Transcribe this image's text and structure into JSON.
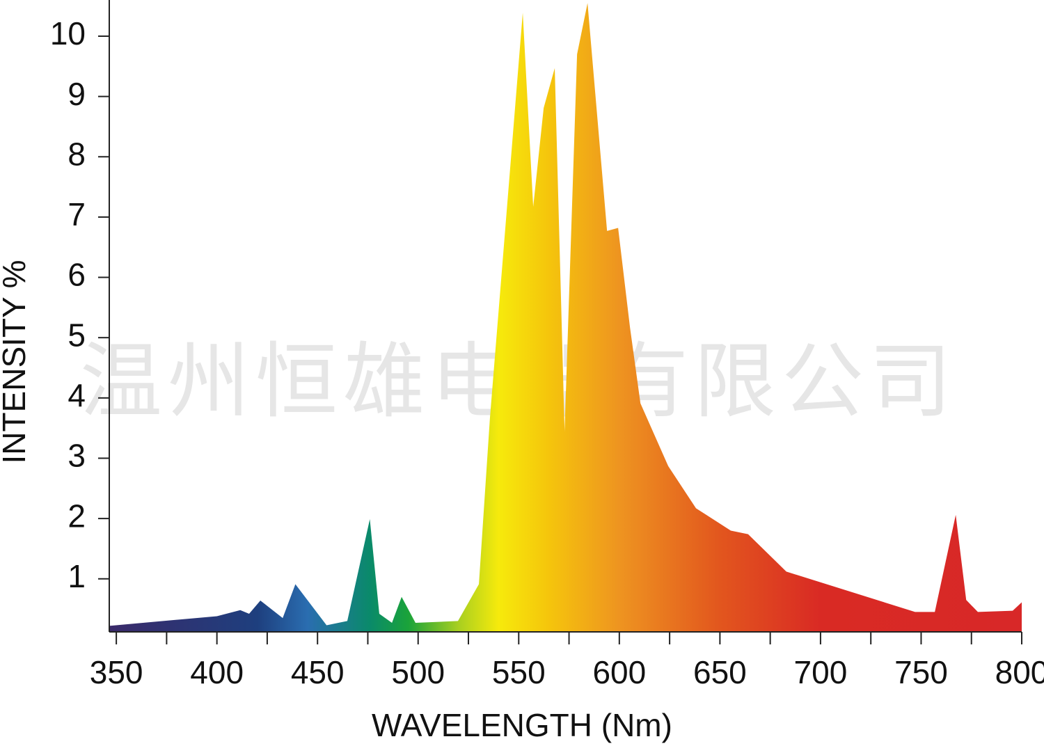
{
  "chart_data": {
    "type": "area",
    "watermark": "温州恒雄电器有限公司",
    "x_label": "WAVELENGTH (Nm)",
    "y_label": "INTENSITY %",
    "x": [
      346.5,
      400,
      411.6,
      416,
      421.6,
      432.7,
      439,
      454.5,
      464.8,
      476,
      480.7,
      487,
      491.8,
      498.7,
      519.8,
      530.2,
      535.7,
      552,
      557.2,
      562.4,
      567.9,
      572.8,
      579,
      584.2,
      593.9,
      599.4,
      605.3,
      610.5,
      624.3,
      638.1,
      655.4,
      664,
      683,
      747,
      756.8,
      767.2,
      772.4,
      778.2,
      795.5,
      800
    ],
    "values": [
      0.22,
      0.38,
      0.48,
      0.42,
      0.64,
      0.35,
      0.91,
      0.23,
      0.3,
      1.99,
      0.42,
      0.27,
      0.7,
      0.27,
      0.3,
      0.91,
      3.67,
      10.39,
      7.17,
      8.81,
      9.47,
      3.45,
      9.7,
      10.55,
      6.77,
      6.82,
      5.17,
      3.91,
      2.87,
      2.17,
      1.8,
      1.74,
      1.12,
      0.45,
      0.45,
      2.06,
      0.65,
      0.45,
      0.47,
      0.61
    ],
    "xlim": [
      346.5,
      800
    ],
    "ylim": [
      0.12,
      10.6
    ],
    "xticks": [
      350,
      400,
      450,
      500,
      550,
      600,
      650,
      700,
      750,
      800
    ],
    "xminor_ticks": [
      375,
      425,
      475,
      525,
      575,
      625,
      675,
      725,
      775
    ],
    "yticks": [
      1,
      2,
      3,
      4,
      5,
      6,
      7,
      8,
      9,
      10
    ],
    "gradient": [
      {
        "at": 346.5,
        "color": "#3a2a6a"
      },
      {
        "at": 420,
        "color": "#1e3f7e"
      },
      {
        "at": 445,
        "color": "#2a6db0"
      },
      {
        "at": 476,
        "color": "#0a8a6a"
      },
      {
        "at": 495,
        "color": "#1aa33a"
      },
      {
        "at": 520,
        "color": "#a8cf20"
      },
      {
        "at": 540,
        "color": "#f6ea0c"
      },
      {
        "at": 565,
        "color": "#f5c50c"
      },
      {
        "at": 600,
        "color": "#ee9420"
      },
      {
        "at": 650,
        "color": "#e2561e"
      },
      {
        "at": 700,
        "color": "#d92a24"
      },
      {
        "at": 800,
        "color": "#d82828"
      }
    ]
  }
}
